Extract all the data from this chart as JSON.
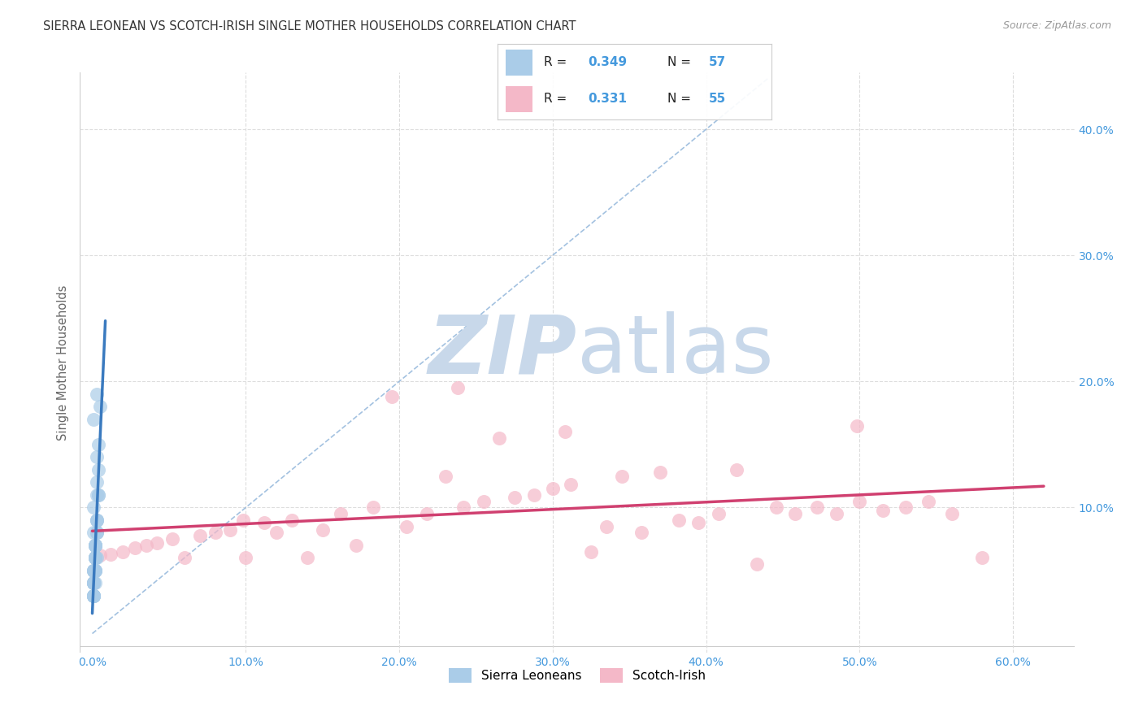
{
  "title": "SIERRA LEONEAN VS SCOTCH-IRISH SINGLE MOTHER HOUSEHOLDS CORRELATION CHART",
  "source": "Source: ZipAtlas.com",
  "ylabel": "Single Mother Households",
  "x_ticks": [
    0.0,
    0.1,
    0.2,
    0.3,
    0.4,
    0.5,
    0.6
  ],
  "x_tick_labels": [
    "0.0%",
    "10.0%",
    "20.0%",
    "30.0%",
    "40.0%",
    "50.0%",
    "60.0%"
  ],
  "y_ticks": [
    0.0,
    0.1,
    0.2,
    0.3,
    0.4
  ],
  "y_tick_labels": [
    "",
    "10.0%",
    "20.0%",
    "30.0%",
    "40.0%"
  ],
  "xlim": [
    -0.008,
    0.64
  ],
  "ylim": [
    -0.015,
    0.445
  ],
  "blue_color": "#aacce8",
  "pink_color": "#f4b8c8",
  "blue_line_color": "#3a7abf",
  "pink_line_color": "#d04070",
  "dashed_line_color": "#99bbdd",
  "watermark_zip_color": "#c8d8ea",
  "watermark_atlas_color": "#c8d8ea",
  "axis_color": "#4499dd",
  "grid_color": "#dddddd",
  "sierra_x": [
    0.002,
    0.003,
    0.001,
    0.004,
    0.002,
    0.001,
    0.003,
    0.002,
    0.001,
    0.004,
    0.002,
    0.001,
    0.005,
    0.002,
    0.003,
    0.001,
    0.002,
    0.001,
    0.003,
    0.002,
    0.001,
    0.002,
    0.003,
    0.002,
    0.001,
    0.003,
    0.002,
    0.001,
    0.004,
    0.002,
    0.001,
    0.003,
    0.002,
    0.001,
    0.002,
    0.001,
    0.003,
    0.002,
    0.001,
    0.002,
    0.001,
    0.002,
    0.003,
    0.001,
    0.004,
    0.002,
    0.001,
    0.003,
    0.002,
    0.001,
    0.002,
    0.001,
    0.002,
    0.003,
    0.001,
    0.002,
    0.001
  ],
  "sierra_y": [
    0.07,
    0.19,
    0.08,
    0.15,
    0.06,
    0.05,
    0.14,
    0.04,
    0.17,
    0.13,
    0.06,
    0.05,
    0.18,
    0.07,
    0.12,
    0.04,
    0.06,
    0.03,
    0.11,
    0.05,
    0.1,
    0.07,
    0.09,
    0.06,
    0.04,
    0.08,
    0.05,
    0.03,
    0.11,
    0.07,
    0.04,
    0.09,
    0.06,
    0.03,
    0.07,
    0.05,
    0.08,
    0.06,
    0.03,
    0.07,
    0.04,
    0.06,
    0.08,
    0.05,
    0.11,
    0.06,
    0.03,
    0.09,
    0.05,
    0.03,
    0.06,
    0.04,
    0.07,
    0.06,
    0.04,
    0.05,
    0.03
  ],
  "scotch_x": [
    0.005,
    0.012,
    0.02,
    0.028,
    0.035,
    0.042,
    0.052,
    0.06,
    0.07,
    0.08,
    0.09,
    0.1,
    0.112,
    0.12,
    0.13,
    0.14,
    0.15,
    0.162,
    0.172,
    0.183,
    0.195,
    0.205,
    0.218,
    0.23,
    0.242,
    0.255,
    0.265,
    0.275,
    0.288,
    0.3,
    0.312,
    0.325,
    0.335,
    0.345,
    0.358,
    0.37,
    0.382,
    0.395,
    0.408,
    0.42,
    0.433,
    0.446,
    0.458,
    0.472,
    0.485,
    0.5,
    0.515,
    0.53,
    0.545,
    0.56,
    0.098,
    0.238,
    0.308,
    0.498,
    0.58
  ],
  "scotch_y": [
    0.062,
    0.063,
    0.065,
    0.068,
    0.07,
    0.072,
    0.075,
    0.06,
    0.078,
    0.08,
    0.082,
    0.06,
    0.088,
    0.08,
    0.09,
    0.06,
    0.082,
    0.095,
    0.07,
    0.1,
    0.188,
    0.085,
    0.095,
    0.125,
    0.1,
    0.105,
    0.155,
    0.108,
    0.11,
    0.115,
    0.118,
    0.065,
    0.085,
    0.125,
    0.08,
    0.128,
    0.09,
    0.088,
    0.095,
    0.13,
    0.055,
    0.1,
    0.095,
    0.1,
    0.095,
    0.105,
    0.098,
    0.1,
    0.105,
    0.095,
    0.09,
    0.195,
    0.16,
    0.165,
    0.06
  ]
}
